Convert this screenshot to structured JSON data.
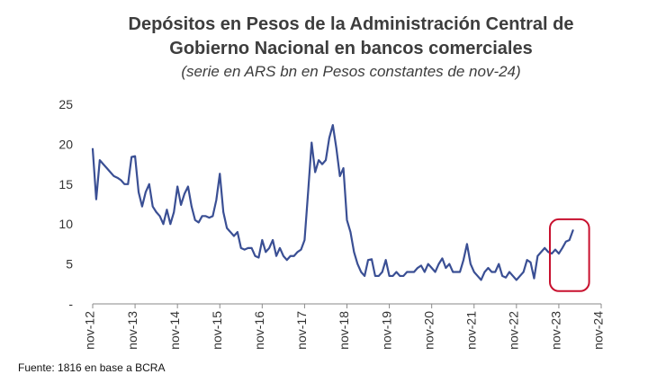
{
  "chart_data": {
    "type": "line",
    "title_line1": "Depósitos en Pesos de la Administración Central de",
    "title_line2": "Gobierno Nacional en bancos comerciales",
    "subtitle": "(serie en ARS bn en Pesos constantes de nov-24)",
    "source": "Fuente: 1816 en base a BCRA",
    "ylim": [
      0,
      25
    ],
    "y_ticks": [
      {
        "value": 25,
        "label": "25"
      },
      {
        "value": 20,
        "label": "20"
      },
      {
        "value": 15,
        "label": "15"
      },
      {
        "value": 10,
        "label": "10"
      },
      {
        "value": 5,
        "label": "5"
      },
      {
        "value": 0,
        "label": "-"
      }
    ],
    "x_ticks": [
      "nov-12",
      "nov-13",
      "nov-14",
      "nov-15",
      "nov-16",
      "nov-17",
      "nov-18",
      "nov-19",
      "nov-20",
      "nov-21",
      "nov-22",
      "nov-23",
      "nov-24"
    ],
    "x_start": "nov-12",
    "x_end": "nov-24",
    "grid": false,
    "line_color": "#3a4f94",
    "highlight_color": "#c8102e",
    "highlight_range": [
      "oct-23",
      "nov-24"
    ],
    "series": [
      {
        "values": [
          19.4,
          13.1,
          18.0,
          17.5,
          17.0,
          16.5,
          16.0,
          15.8,
          15.5,
          15.0,
          15.0,
          18.4,
          18.5,
          14.0,
          12.2,
          14.0,
          15.0,
          12.2,
          11.5,
          11.0,
          10.0,
          11.8,
          10.0,
          11.5,
          14.7,
          12.4,
          13.8,
          14.7,
          12.2,
          10.5,
          10.2,
          11.0,
          11.0,
          10.8,
          11.0,
          13.0,
          16.3,
          11.5,
          9.5,
          9.0,
          8.5,
          9.0,
          7.0,
          6.8,
          7.0,
          7.0,
          6.0,
          5.8,
          8.0,
          6.5,
          7.0,
          8.0,
          6.0,
          7.0,
          6.0,
          5.5,
          6.0,
          6.0,
          6.5,
          6.8,
          8.0,
          14.0,
          20.2,
          16.5,
          18.0,
          17.5,
          18.0,
          20.8,
          22.4,
          19.5,
          16.0,
          17.0,
          10.5,
          9.0,
          6.5,
          5.0,
          4.0,
          3.5,
          5.5,
          5.6,
          3.5,
          3.5,
          4.0,
          5.5,
          3.5,
          3.5,
          4.0,
          3.5,
          3.5,
          4.0,
          4.0,
          4.0,
          4.5,
          4.8,
          4.0,
          5.0,
          4.5,
          4.0,
          5.0,
          5.7,
          4.5,
          5.0,
          4.0,
          4.0,
          4.0,
          5.5,
          7.5,
          5.0,
          4.0,
          3.5,
          3.0,
          4.0,
          4.5,
          4.0,
          4.0,
          5.0,
          3.5,
          3.3,
          4.0,
          3.5,
          3.0,
          3.5,
          4.0,
          5.5,
          5.2,
          3.2,
          6.0,
          6.5,
          7.0,
          6.5,
          6.3,
          6.8,
          6.3,
          7.0,
          7.8,
          8.0,
          9.2
        ]
      }
    ]
  }
}
